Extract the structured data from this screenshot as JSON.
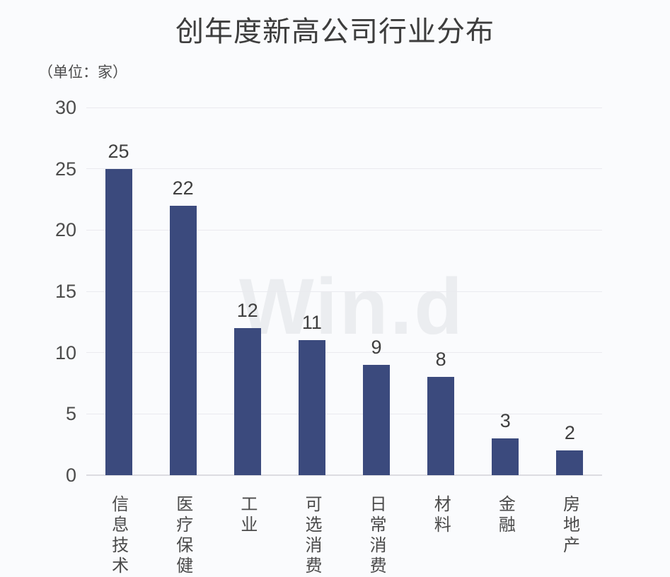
{
  "title": "创年度新高公司行业分布",
  "unit_label": "（单位：家）",
  "watermark": "Win.d",
  "colors": {
    "background": "#fafbfd",
    "bar": "#3b4a7d",
    "gridline": "#eaeaef",
    "baseline": "#dcdce1",
    "title_text": "#3d3d3d",
    "tick_text": "#4c4c4c",
    "watermark_text": "#ebedf0"
  },
  "chart_data": {
    "type": "bar",
    "title": "创年度新高公司行业分布",
    "categories": [
      "信息技术",
      "医疗保健",
      "工业",
      "可选消费",
      "日常消费",
      "材料",
      "金融",
      "房地产"
    ],
    "values": [
      25,
      22,
      12,
      11,
      9,
      8,
      3,
      2
    ],
    "xlabel": "",
    "ylabel": "（单位：家）",
    "ylim": [
      0,
      30
    ],
    "yticks": [
      0,
      5,
      10,
      15,
      20,
      25,
      30
    ],
    "grid": true,
    "legend_position": "none",
    "bar_color": "#3b4a7d"
  }
}
